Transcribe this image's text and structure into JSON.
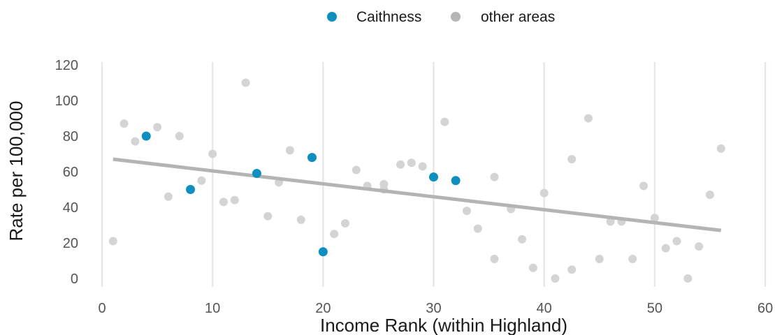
{
  "chart_data": {
    "type": "scatter",
    "xlabel": "Income Rank (within Highland)",
    "ylabel": "Rate per 100,000",
    "xlim": [
      0,
      60
    ],
    "ylim": [
      0,
      120
    ],
    "x_ticks": [
      0,
      10,
      20,
      30,
      40,
      50,
      60
    ],
    "y_ticks": [
      0,
      20,
      40,
      60,
      80,
      100,
      120
    ],
    "grid": "vertical major lines only",
    "legend_position": "top",
    "series": [
      {
        "name": "Caithness",
        "color": "#0f8fbf",
        "points": [
          {
            "x": 4,
            "y": 80
          },
          {
            "x": 8,
            "y": 50
          },
          {
            "x": 14,
            "y": 59
          },
          {
            "x": 19,
            "y": 68
          },
          {
            "x": 20,
            "y": 15
          },
          {
            "x": 30,
            "y": 57
          },
          {
            "x": 32,
            "y": 55
          }
        ]
      },
      {
        "name": "other areas",
        "color": "#d4d4d4",
        "points": [
          {
            "x": 1,
            "y": 21
          },
          {
            "x": 2,
            "y": 87
          },
          {
            "x": 3,
            "y": 77
          },
          {
            "x": 5,
            "y": 85
          },
          {
            "x": 6,
            "y": 46
          },
          {
            "x": 7,
            "y": 80
          },
          {
            "x": 9,
            "y": 55
          },
          {
            "x": 10,
            "y": 70
          },
          {
            "x": 11,
            "y": 43
          },
          {
            "x": 12,
            "y": 44
          },
          {
            "x": 13,
            "y": 110
          },
          {
            "x": 15,
            "y": 35
          },
          {
            "x": 16,
            "y": 54
          },
          {
            "x": 17,
            "y": 72
          },
          {
            "x": 18,
            "y": 33
          },
          {
            "x": 21,
            "y": 25
          },
          {
            "x": 22,
            "y": 31
          },
          {
            "x": 23,
            "y": 61
          },
          {
            "x": 24,
            "y": 52
          },
          {
            "x": 25.5,
            "y": 53
          },
          {
            "x": 25.5,
            "y": 50
          },
          {
            "x": 27,
            "y": 64
          },
          {
            "x": 28,
            "y": 65
          },
          {
            "x": 29,
            "y": 63
          },
          {
            "x": 31,
            "y": 88
          },
          {
            "x": 33,
            "y": 38
          },
          {
            "x": 34,
            "y": 28
          },
          {
            "x": 35.5,
            "y": 57
          },
          {
            "x": 35.5,
            "y": 11
          },
          {
            "x": 37,
            "y": 39
          },
          {
            "x": 38,
            "y": 22
          },
          {
            "x": 39,
            "y": 6
          },
          {
            "x": 40,
            "y": 48
          },
          {
            "x": 41,
            "y": 0
          },
          {
            "x": 42.5,
            "y": 67
          },
          {
            "x": 42.5,
            "y": 5
          },
          {
            "x": 44,
            "y": 90
          },
          {
            "x": 45,
            "y": 11
          },
          {
            "x": 46,
            "y": 32
          },
          {
            "x": 47,
            "y": 32
          },
          {
            "x": 48,
            "y": 11
          },
          {
            "x": 49,
            "y": 52
          },
          {
            "x": 50,
            "y": 34
          },
          {
            "x": 51,
            "y": 17
          },
          {
            "x": 52,
            "y": 21
          },
          {
            "x": 53,
            "y": 0
          },
          {
            "x": 54,
            "y": 18
          },
          {
            "x": 55,
            "y": 47
          },
          {
            "x": 56,
            "y": 73
          }
        ]
      }
    ],
    "trend_line": {
      "color": "#b4b4b4",
      "start": {
        "x": 1,
        "y": 67
      },
      "end": {
        "x": 56,
        "y": 27
      }
    }
  }
}
